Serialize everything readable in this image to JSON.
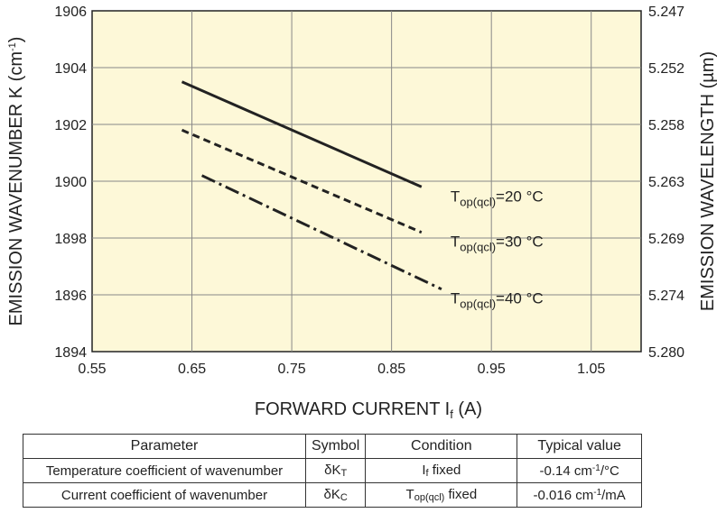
{
  "chart_data": {
    "type": "line",
    "xlabel": "FORWARD CURRENT",
    "xlabel_symbol": "I",
    "xlabel_symbol_sub": "f",
    "xlabel_unit": "(A)",
    "ylabel_left": "EMISSION WAVENUMBER K",
    "ylabel_left_unit_open": "(cm",
    "ylabel_left_unit_sup": "-1",
    "ylabel_left_unit_close": ")",
    "ylabel_right": "EMISSION WAVELENGTH (µm)",
    "xlim": [
      0.55,
      1.1
    ],
    "ylim": [
      1894,
      1906
    ],
    "grid": true,
    "background_color": "#fdf8d8",
    "x_ticks": [
      "0.55",
      "0.65",
      "0.75",
      "0.85",
      "0.95",
      "1.05"
    ],
    "x_tick_values": [
      0.55,
      0.65,
      0.75,
      0.85,
      0.95,
      1.05
    ],
    "y_ticks_left": [
      "1894",
      "1896",
      "1898",
      "1900",
      "1902",
      "1904",
      "1906"
    ],
    "y_tick_values_left": [
      1894,
      1896,
      1898,
      1900,
      1902,
      1904,
      1906
    ],
    "y_ticks_right": [
      "5.280",
      "5.274",
      "5.269",
      "5.263",
      "5.258",
      "5.252",
      "5.247"
    ],
    "series": [
      {
        "label_prefix": "T",
        "label_sub": "op(qcl)",
        "label_suffix": "=20 °C",
        "style": "solid",
        "x": [
          0.64,
          0.88
        ],
        "y": [
          1903.5,
          1899.8
        ]
      },
      {
        "label_prefix": "T",
        "label_sub": "op(qcl)",
        "label_suffix": "=30 °C",
        "style": "dashed",
        "x": [
          0.64,
          0.88
        ],
        "y": [
          1901.8,
          1898.2
        ]
      },
      {
        "label_prefix": "T",
        "label_sub": "op(qcl)",
        "label_suffix": "=40 °C",
        "style": "dashdot",
        "x": [
          0.66,
          0.9
        ],
        "y": [
          1900.2,
          1896.2
        ]
      }
    ]
  },
  "table": {
    "headers": [
      "Parameter",
      "Symbol",
      "Condition",
      "Typical value"
    ],
    "rows": [
      {
        "parameter": "Temperature coefficient of wavenumber",
        "symbol_main": "δK",
        "symbol_sub": "T",
        "condition_main": "I",
        "condition_sub": "f",
        "condition_rest": " fixed",
        "value_main": "-0.14 cm",
        "value_sup": "-1",
        "value_rest": "/°C"
      },
      {
        "parameter": "Current coefficient of wavenumber",
        "symbol_main": "δK",
        "symbol_sub": "C",
        "condition_main": "T",
        "condition_sub": "op(qcl)",
        "condition_rest": " fixed",
        "value_main": "-0.016 cm",
        "value_sup": "-1",
        "value_rest": "/mA"
      }
    ]
  }
}
